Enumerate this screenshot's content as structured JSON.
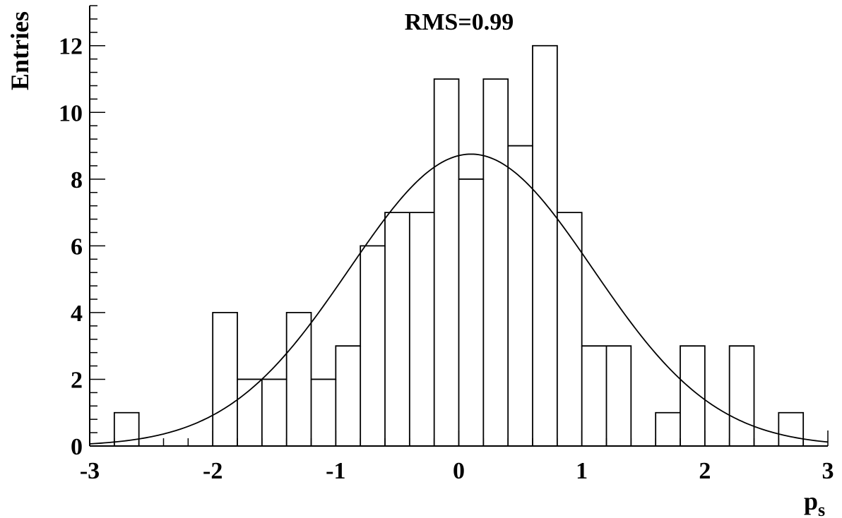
{
  "chart_data": {
    "type": "histogram",
    "title": "",
    "xlabel_base": "p",
    "xlabel_sub": "s",
    "ylabel": "Entries",
    "annotation": "RMS=0.99",
    "xlim": [
      -3,
      3
    ],
    "ylim": [
      0,
      13.2
    ],
    "grid": false,
    "legend": "none",
    "x_ticks": [
      -3,
      -2,
      -1,
      0,
      1,
      2,
      3
    ],
    "x_tick_labels": [
      "-3",
      "-2",
      "-1",
      "0",
      "1",
      "2",
      "3"
    ],
    "y_ticks": [
      0,
      2,
      4,
      6,
      8,
      10,
      12
    ],
    "y_tick_labels": [
      "0",
      "2",
      "4",
      "6",
      "8",
      "10",
      "12"
    ],
    "bin_edges": [
      -3.0,
      -2.8,
      -2.6,
      -2.4,
      -2.2,
      -2.0,
      -1.8,
      -1.6,
      -1.4,
      -1.2,
      -1.0,
      -0.8,
      -0.6,
      -0.4,
      -0.2,
      0.0,
      0.2,
      0.4,
      0.6,
      0.8,
      1.0,
      1.2,
      1.4,
      1.6,
      1.8,
      2.0,
      2.2,
      2.4,
      2.6,
      2.8,
      3.0
    ],
    "counts": [
      0,
      1,
      0,
      0,
      0,
      4,
      2,
      2,
      4,
      2,
      3,
      6,
      7,
      7,
      11,
      8,
      11,
      9,
      12,
      7,
      3,
      3,
      0,
      1,
      3,
      0,
      3,
      0,
      1,
      0
    ],
    "fit": {
      "type": "gaussian",
      "amplitude": 8.75,
      "mean": 0.1,
      "sigma": 0.99
    }
  }
}
